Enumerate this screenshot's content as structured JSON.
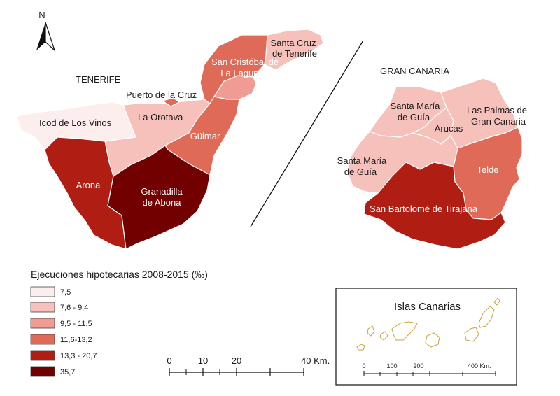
{
  "north_arrow": {
    "label": "N"
  },
  "colors": {
    "c1": "#fdeeee",
    "c2": "#f6c0bb",
    "c3": "#ee9c94",
    "c4": "#e06a58",
    "c5": "#b01d12",
    "c6": "#720000"
  },
  "islands": {
    "tenerife": "TENERIFE",
    "gran_canaria": "GRAN CANARIA"
  },
  "municipalities": {
    "icod": "Icod de Los Vinos",
    "puerto": "Puerto de la Cruz",
    "orotava": "La Orotava",
    "santa_cruz": [
      "Santa Cruz",
      "de Tenerife"
    ],
    "laguna": [
      "San Cristóbal de",
      "La Laguna"
    ],
    "guimar": "Güimar",
    "arona": "Arona",
    "granadilla": [
      "Granadilla",
      "de Abona"
    ],
    "santa_maria_1": [
      "Santa María",
      "de Guía"
    ],
    "arucas": "Arucas",
    "palmas": [
      "Las Palmas de",
      "Gran Canaria"
    ],
    "santa_maria_2": [
      "Santa María",
      "de Guía"
    ],
    "telde": "Telde",
    "tirajana": "San Bartolomé de Tirajana"
  },
  "legend": {
    "title": "Ejecuciones hipotecarias 2008-2015 (‰)",
    "classes": [
      "7,5",
      "7,6 - 9,4",
      "9,5 - 11,5",
      "11,6-13,2",
      "13,3 - 20,7",
      "35,7"
    ]
  },
  "scale_bar": {
    "ticks": [
      "0",
      "10",
      "20",
      "40 Km."
    ]
  },
  "inset": {
    "title": "Islas Canarias",
    "ticks": [
      "0",
      "100",
      "200",
      "400 Km."
    ]
  }
}
